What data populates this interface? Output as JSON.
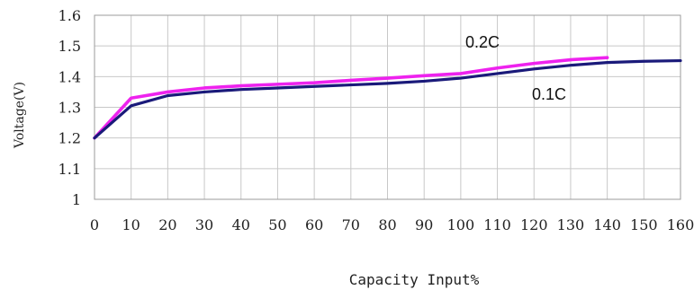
{
  "chart_data": {
    "type": "line",
    "title": "",
    "xlabel": "Capacity Input%",
    "ylabel": "Voltage(V)",
    "xlim": [
      0,
      160
    ],
    "ylim": [
      1,
      1.6
    ],
    "x_ticks": [
      0,
      10,
      20,
      30,
      40,
      50,
      60,
      70,
      80,
      90,
      100,
      110,
      120,
      130,
      140,
      150,
      160
    ],
    "x_tick_labels": [
      "0",
      "10",
      "20",
      "30",
      "40",
      "50",
      "60",
      "70",
      "80",
      "90",
      "100",
      "110",
      "120",
      "130",
      "140",
      "150",
      "160"
    ],
    "y_ticks": [
      1,
      1.1,
      1.2,
      1.3,
      1.4,
      1.5,
      1.6
    ],
    "y_tick_labels": [
      "1",
      "1.1",
      "1.2",
      "1.3",
      "1.4",
      "1.5",
      "1.6"
    ],
    "grid": true,
    "legend": "none",
    "series": [
      {
        "name": "0.2C",
        "color": "#ee22ee",
        "x": [
          0,
          10,
          20,
          30,
          40,
          50,
          60,
          70,
          80,
          90,
          100,
          110,
          120,
          130,
          140
        ],
        "y": [
          1.2,
          1.33,
          1.35,
          1.363,
          1.37,
          1.375,
          1.38,
          1.388,
          1.395,
          1.403,
          1.41,
          1.428,
          1.443,
          1.455,
          1.462
        ]
      },
      {
        "name": "0.1C",
        "color": "#1a1a7a",
        "x": [
          0,
          10,
          20,
          30,
          40,
          50,
          60,
          70,
          80,
          90,
          100,
          110,
          120,
          130,
          140,
          150,
          160
        ],
        "y": [
          1.2,
          1.305,
          1.338,
          1.35,
          1.358,
          1.363,
          1.368,
          1.373,
          1.378,
          1.385,
          1.395,
          1.41,
          1.425,
          1.437,
          1.446,
          1.45,
          1.452
        ]
      }
    ]
  }
}
